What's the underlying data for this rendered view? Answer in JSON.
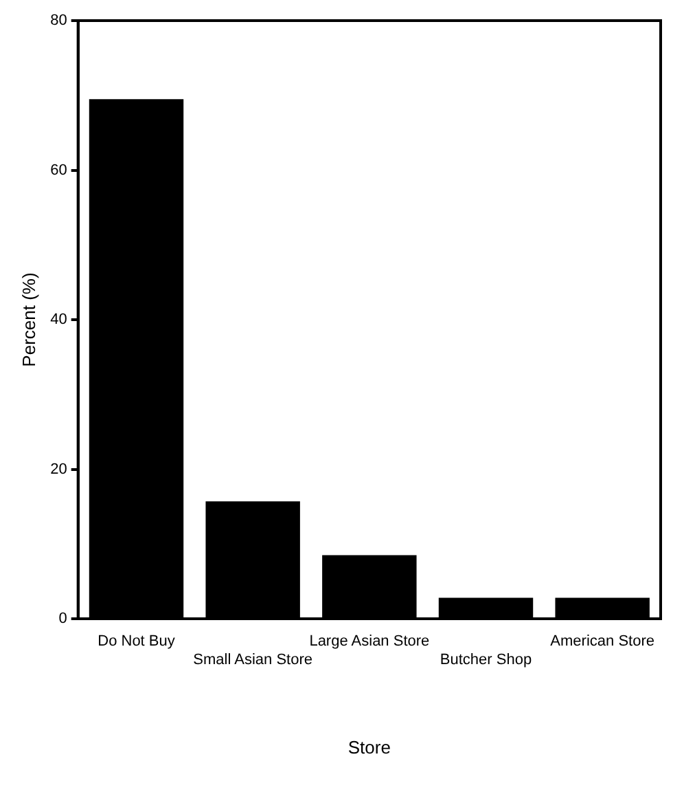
{
  "chart_data": {
    "type": "bar",
    "xlabel": "Store",
    "ylabel": "Percent (%)",
    "categories": [
      "Do Not Buy",
      "Small Asian Store",
      "Large Asian Store",
      "Butcher Shop",
      "American Store"
    ],
    "values": [
      69.5,
      15.7,
      8.5,
      2.8,
      2.8
    ],
    "color": "#000000",
    "ylim": [
      0,
      80
    ],
    "yticks": [
      0,
      20,
      40,
      60,
      80
    ],
    "grid": false,
    "legend": false
  }
}
